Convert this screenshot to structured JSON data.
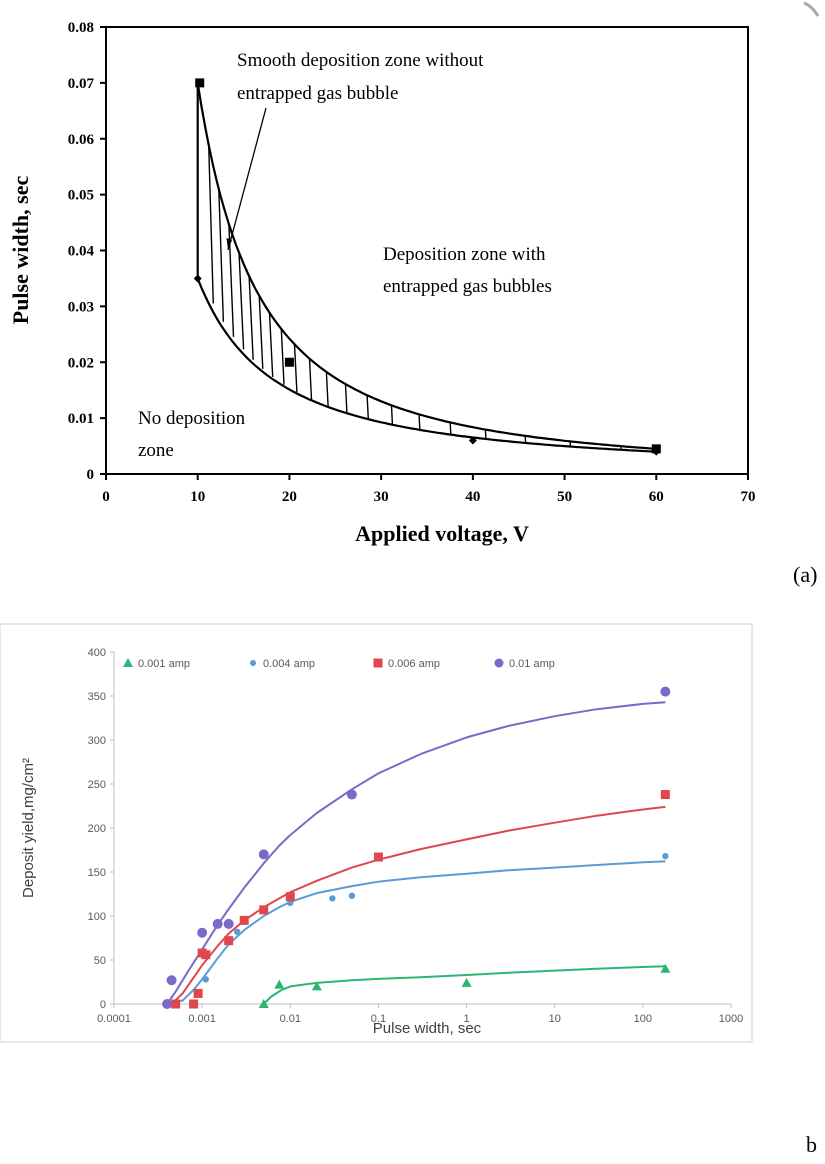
{
  "chart_data": [
    {
      "type": "line",
      "panel_label": "(a)",
      "title": "",
      "xlabel": "Applied voltage, V",
      "ylabel": "Pulse width, sec",
      "xlim": [
        0,
        70
      ],
      "ylim": [
        0,
        0.08
      ],
      "x_ticks": [
        "0",
        "10",
        "20",
        "30",
        "40",
        "50",
        "60",
        "70"
      ],
      "y_ticks": [
        "0",
        "0.01",
        "0.02",
        "0.03",
        "0.04",
        "0.05",
        "0.06",
        "0.07",
        "0.08"
      ],
      "grid": false,
      "series": [
        {
          "marker": "square",
          "x": [
            10,
            20,
            60
          ],
          "y": [
            0.07,
            0.02,
            0.0045
          ]
        },
        {
          "marker": "diamond",
          "x": [
            10,
            40,
            60
          ],
          "y": [
            0.035,
            0.006,
            0.004
          ]
        }
      ],
      "annotations": [
        {
          "text_lines": [
            "Smooth deposition zone without",
            "entrapped gas bubble"
          ]
        },
        {
          "text_lines": [
            "Deposition  zone with",
            "entrapped gas bubbles"
          ]
        },
        {
          "text_lines": [
            "No deposition",
            "zone"
          ]
        }
      ]
    },
    {
      "type": "scatter",
      "panel_label": "b",
      "title": "",
      "xlabel": "Pulse width, sec",
      "ylabel": "Deposit yield,mg/cm²",
      "x_scale": "log",
      "xlim": [
        0.0001,
        1000
      ],
      "ylim": [
        0,
        400
      ],
      "x_ticks": [
        "0.0001",
        "0.001",
        "0.01",
        "0.1",
        "1",
        "10",
        "100",
        "1000"
      ],
      "y_ticks": [
        "0",
        "50",
        "100",
        "150",
        "200",
        "250",
        "300",
        "350",
        "400"
      ],
      "grid": false,
      "legend_position": "top",
      "series": [
        {
          "name": "0.001 amp",
          "color": "#2bb673",
          "marker": "triangle",
          "x": [
            0.005,
            0.0075,
            0.02,
            1,
            180
          ],
          "y": [
            0,
            22,
            20,
            24,
            40
          ],
          "fit_x": [
            0.005,
            0.006,
            0.008,
            0.01,
            0.02,
            0.05,
            0.1,
            0.3,
            1,
            3,
            10,
            30,
            100,
            180
          ],
          "fit_y": [
            0,
            8,
            16,
            20,
            24,
            27,
            28.5,
            30.5,
            33,
            35.5,
            38,
            40,
            42,
            43
          ]
        },
        {
          "name": "0.004 amp",
          "color": "#5b9bd5",
          "marker": "circle",
          "x": [
            0.0004,
            0.0005,
            0.0011,
            0.002,
            0.0025,
            0.01,
            0.03,
            0.05,
            180
          ],
          "y": [
            0,
            0,
            28,
            70,
            82,
            115,
            120,
            123,
            168
          ],
          "fit_x": [
            0.0004,
            0.0006,
            0.0008,
            0.001,
            0.0015,
            0.002,
            0.003,
            0.005,
            0.0075,
            0.01,
            0.02,
            0.05,
            0.1,
            0.3,
            1,
            3,
            10,
            30,
            100,
            180
          ],
          "fit_y": [
            0,
            4,
            16,
            28,
            52,
            68,
            84,
            100,
            110,
            116,
            126,
            134,
            139,
            144,
            148,
            152,
            155,
            158,
            161,
            162
          ]
        },
        {
          "name": "0.006 amp",
          "color": "#e0474c",
          "marker": "square",
          "x": [
            0.0005,
            0.0008,
            0.0009,
            0.001,
            0.0011,
            0.002,
            0.003,
            0.005,
            0.01,
            0.1,
            180
          ],
          "y": [
            0,
            0,
            12,
            58,
            56,
            72,
            95,
            107,
            122,
            167,
            238
          ],
          "fit_x": [
            0.00045,
            0.0006,
            0.0008,
            0.001,
            0.0015,
            0.002,
            0.003,
            0.005,
            0.0075,
            0.01,
            0.02,
            0.05,
            0.1,
            0.3,
            1,
            3,
            10,
            30,
            100,
            180
          ],
          "fit_y": [
            0,
            12,
            30,
            44,
            66,
            80,
            95,
            110,
            120,
            127,
            140,
            155,
            164,
            176,
            187,
            197,
            206,
            214,
            221,
            224
          ]
        },
        {
          "name": "0.01 amp",
          "color": "#7b68c8",
          "marker": "circle",
          "x": [
            0.0004,
            0.00045,
            0.001,
            0.0015,
            0.002,
            0.005,
            0.05,
            180
          ],
          "y": [
            0,
            27,
            81,
            91,
            91,
            170,
            238,
            355
          ],
          "fit_x": [
            0.0004,
            0.0005,
            0.0007,
            0.001,
            0.0015,
            0.002,
            0.003,
            0.005,
            0.0075,
            0.01,
            0.02,
            0.05,
            0.1,
            0.3,
            1,
            3,
            10,
            30,
            100,
            180
          ],
          "fit_y": [
            0,
            14,
            38,
            62,
            90,
            108,
            132,
            160,
            180,
            192,
            217,
            244,
            262,
            284,
            303,
            316,
            327,
            335,
            341,
            343
          ]
        }
      ]
    }
  ]
}
